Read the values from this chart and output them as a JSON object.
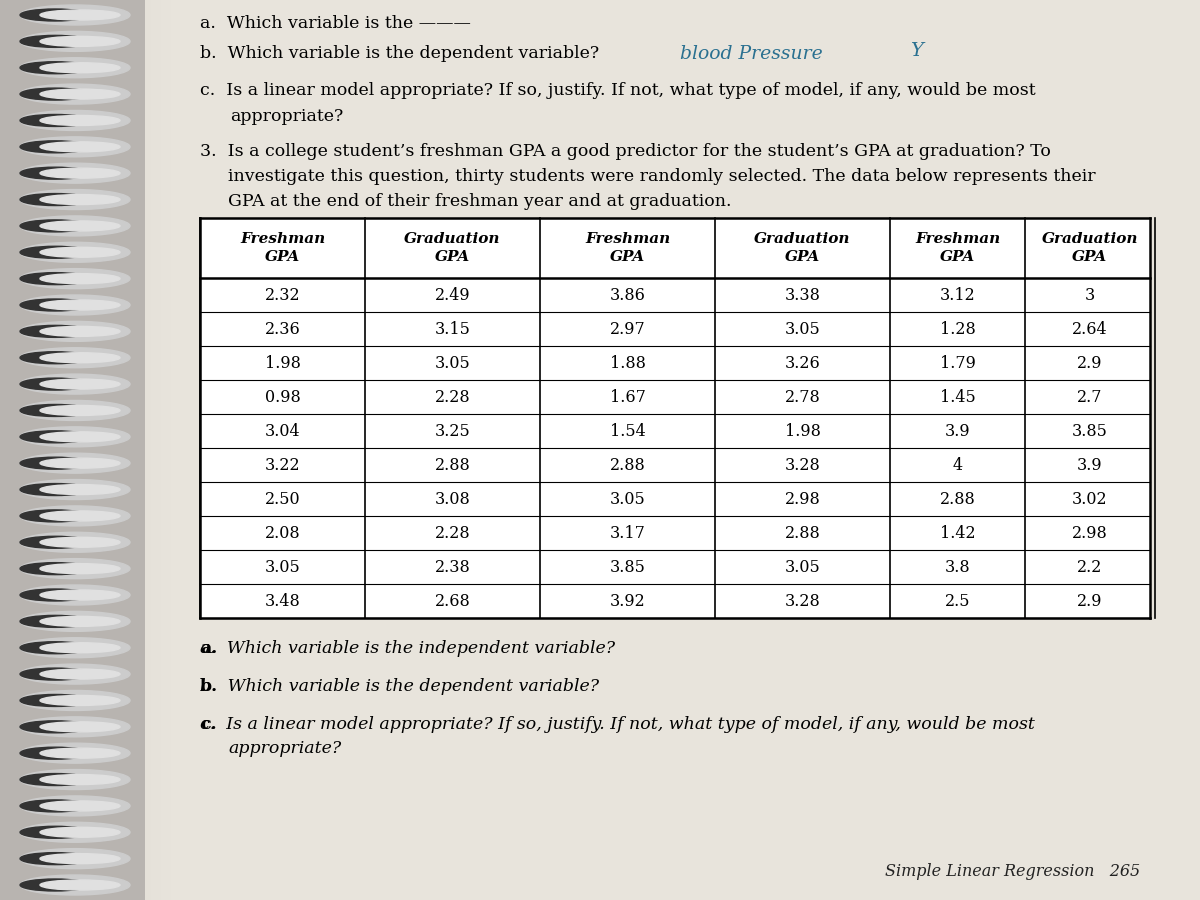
{
  "bg_color": "#b8b4b0",
  "page_bg": "#e8e4dc",
  "page_bg2": "#d4d0c8",
  "handwriting_color": "#2a7090",
  "col1_fresh": [
    "2.32",
    "2.36",
    "1.98",
    "0.98",
    "3.04",
    "3.22",
    "2.50",
    "2.08",
    "3.05",
    "3.48"
  ],
  "col1_grad": [
    "2.49",
    "3.15",
    "3.05",
    "2.28",
    "3.25",
    "2.88",
    "3.08",
    "2.28",
    "2.38",
    "2.68"
  ],
  "col2_fresh": [
    "3.86",
    "2.97",
    "1.88",
    "1.67",
    "1.54",
    "2.88",
    "3.05",
    "3.17",
    "3.85",
    "3.92"
  ],
  "col2_grad": [
    "3.38",
    "3.05",
    "3.26",
    "2.78",
    "1.98",
    "3.28",
    "2.98",
    "2.88",
    "3.05",
    "3.28"
  ],
  "col3_fresh": [
    "3.12",
    "1.28",
    "1.79",
    "1.45",
    "3.9",
    "4",
    "2.88",
    "1.42",
    "3.8",
    "2.5"
  ],
  "col3_grad": [
    "3",
    "2.64",
    "2.9",
    "2.7",
    "3.85",
    "3.9",
    "3.02",
    "2.98",
    "2.2",
    "2.9"
  ],
  "footer_label": "Simple Linear Regression   265"
}
